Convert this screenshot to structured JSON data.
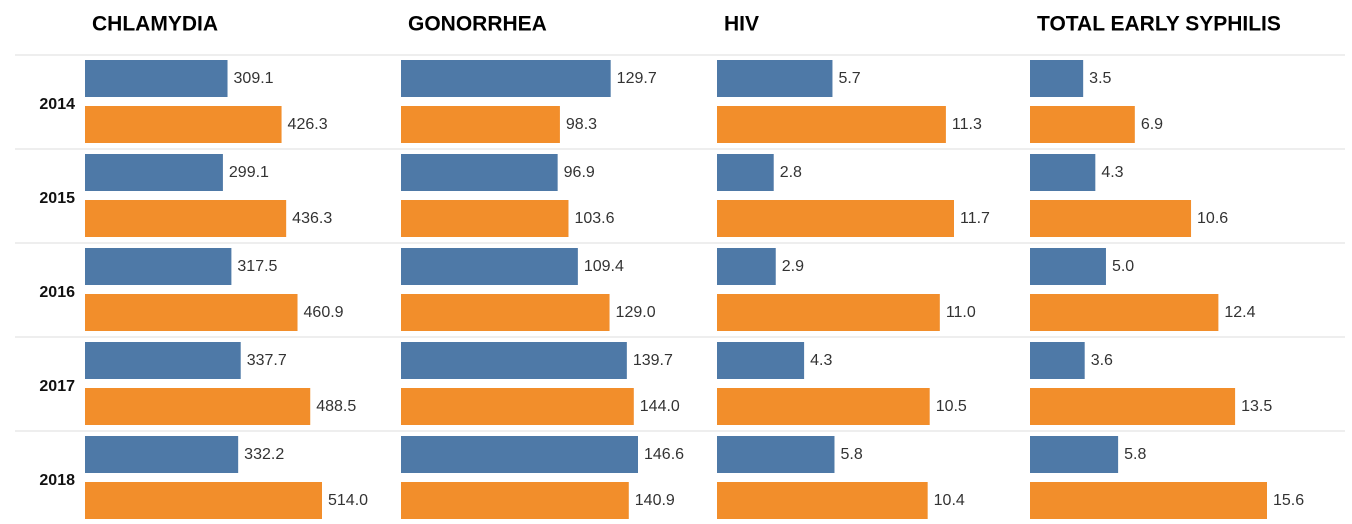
{
  "chart_data": {
    "type": "bar",
    "categories": [
      "2014",
      "2015",
      "2016",
      "2017",
      "2018"
    ],
    "panels": [
      {
        "title": "CHLAMYDIA",
        "series": [
          {
            "color": "#4e79a7",
            "values": [
              309.1,
              299.1,
              317.5,
              337.7,
              332.2
            ],
            "value_labels": [
              "309.1",
              "299.1",
              "317.5",
              "337.7",
              "332.2"
            ]
          },
          {
            "color": "#f28e2b",
            "values": [
              426.3,
              436.3,
              460.9,
              488.5,
              514.0
            ],
            "value_labels": [
              "426.3",
              "436.3",
              "460.9",
              "488.5",
              "514.0"
            ]
          }
        ]
      },
      {
        "title": "GONORRHEA",
        "series": [
          {
            "color": "#4e79a7",
            "values": [
              129.7,
              96.9,
              109.4,
              139.7,
              146.6
            ],
            "value_labels": [
              "129.7",
              "96.9",
              "109.4",
              "139.7",
              "146.6"
            ]
          },
          {
            "color": "#f28e2b",
            "values": [
              98.3,
              103.6,
              129.0,
              144.0,
              140.9
            ],
            "value_labels": [
              "98.3",
              "103.6",
              "129.0",
              "144.0",
              "140.9"
            ]
          }
        ]
      },
      {
        "title": "HIV",
        "series": [
          {
            "color": "#4e79a7",
            "values": [
              5.7,
              2.8,
              2.9,
              4.3,
              5.8
            ],
            "value_labels": [
              "5.7",
              "2.8",
              "2.9",
              "4.3",
              "5.8"
            ]
          },
          {
            "color": "#f28e2b",
            "values": [
              11.3,
              11.7,
              11.0,
              10.5,
              10.4
            ],
            "value_labels": [
              "11.3",
              "11.7",
              "11.0",
              "10.5",
              "10.4"
            ]
          }
        ]
      },
      {
        "title": "TOTAL EARLY SYPHILIS",
        "series": [
          {
            "color": "#4e79a7",
            "values": [
              3.5,
              4.3,
              5.0,
              3.6,
              5.8
            ],
            "value_labels": [
              "3.5",
              "4.3",
              "5.0",
              "3.6",
              "5.8"
            ]
          },
          {
            "color": "#f28e2b",
            "values": [
              6.9,
              10.6,
              12.4,
              13.5,
              15.6
            ],
            "value_labels": [
              "6.9",
              "10.6",
              "12.4",
              "13.5",
              "15.6"
            ]
          }
        ]
      }
    ]
  }
}
